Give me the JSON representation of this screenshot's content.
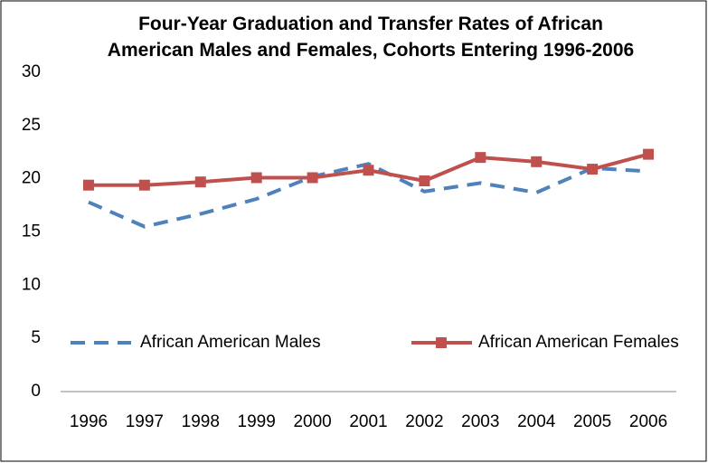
{
  "chart_data": {
    "type": "line",
    "title": "Four-Year Graduation and Transfer Rates of African American Males and Females, Cohorts Entering 1996-2006",
    "categories": [
      "1996",
      "1997",
      "1998",
      "1999",
      "2000",
      "2001",
      "2002",
      "2003",
      "2004",
      "2005",
      "2006"
    ],
    "series": [
      {
        "name": "African American Males",
        "color": "#4f81bd",
        "dash": true,
        "marker": false,
        "values": [
          17.8,
          15.5,
          16.7,
          18.1,
          20.2,
          21.4,
          18.8,
          19.6,
          18.7,
          21.0,
          20.7
        ]
      },
      {
        "name": "African American Females",
        "color": "#c0504d",
        "dash": false,
        "marker": true,
        "values": [
          19.4,
          19.4,
          19.7,
          20.1,
          20.1,
          20.8,
          19.8,
          22.0,
          21.6,
          20.9,
          22.3
        ]
      }
    ],
    "ylim": [
      0,
      30
    ],
    "yticks": [
      0,
      5,
      10,
      15,
      20,
      25,
      30
    ],
    "grid": false,
    "legend": "bottom"
  }
}
